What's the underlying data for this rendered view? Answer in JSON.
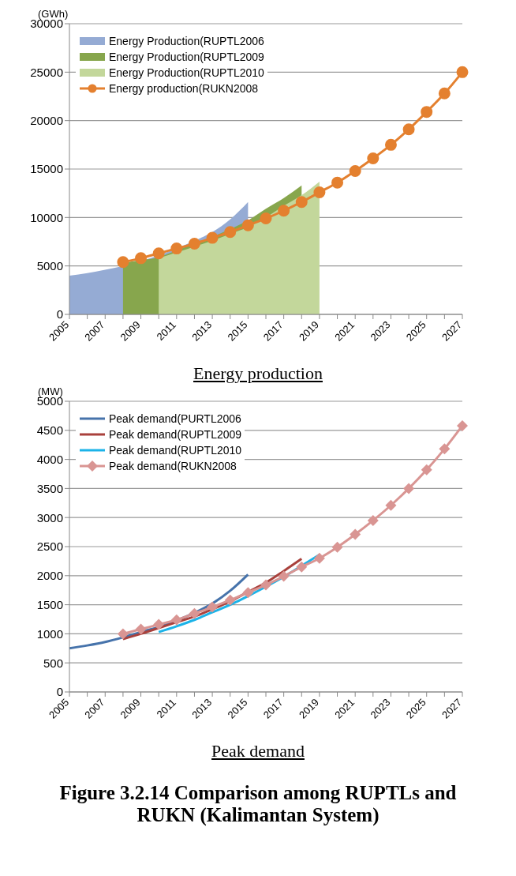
{
  "chart_data": [
    {
      "type": "area",
      "title": "Energy production",
      "ylabel": "(GWh)",
      "categories": [
        "2005",
        null,
        "2007",
        null,
        "2009",
        null,
        "2011",
        null,
        "2013",
        null,
        "2015",
        null,
        "2017",
        null,
        "2019",
        null,
        "2021",
        null,
        "2023",
        null,
        "2025",
        null,
        "2027"
      ],
      "ylim": [
        0,
        30000
      ],
      "yticks": [
        0,
        5000,
        10000,
        15000,
        20000,
        25000,
        30000
      ],
      "grid": "y",
      "legend": "top left",
      "series": [
        {
          "name": "Energy Production(RUPTL2006",
          "color": "#95abd4",
          "values": [
            4000,
            4250,
            4600,
            5000,
            5500,
            6100,
            6800,
            7600,
            8500,
            9800,
            11600,
            null,
            null,
            null,
            null,
            null,
            null,
            null,
            null,
            null,
            null,
            null,
            null
          ]
        },
        {
          "name": "Energy Production(RUPTL2009",
          "color": "#87a64d",
          "values": [
            null,
            null,
            null,
            5300,
            5600,
            5900,
            6600,
            7300,
            8000,
            8800,
            9700,
            10900,
            12000,
            13300,
            null,
            null,
            null,
            null,
            null,
            null,
            null,
            null,
            null
          ]
        },
        {
          "name": "Energy Production(RUPTL2010",
          "color": "#c3d79b",
          "values": [
            null,
            null,
            null,
            null,
            null,
            5800,
            6400,
            7000,
            7600,
            8300,
            9000,
            10000,
            11200,
            12300,
            13700,
            null,
            null,
            null,
            null,
            null,
            null,
            null,
            null
          ]
        },
        {
          "name": "Energy production(RUKN2008",
          "type": "line",
          "marker": "circle",
          "color": "#e4802f",
          "values": [
            null,
            null,
            null,
            5400,
            5800,
            6300,
            6800,
            7300,
            7900,
            8500,
            9200,
            9900,
            10700,
            11600,
            12600,
            13600,
            14800,
            16100,
            17500,
            19100,
            20900,
            22800,
            25000
          ]
        }
      ]
    },
    {
      "type": "line",
      "title": "Peak demand",
      "ylabel": "(MW)",
      "categories": [
        "2005",
        null,
        "2007",
        null,
        "2009",
        null,
        "2011",
        null,
        "2013",
        null,
        "2015",
        null,
        "2017",
        null,
        "2019",
        null,
        "2021",
        null,
        "2023",
        null,
        "2025",
        null,
        "2027"
      ],
      "ylim": [
        0,
        5000
      ],
      "yticks": [
        0,
        500,
        1000,
        1500,
        2000,
        2500,
        3000,
        3500,
        4000,
        4500,
        5000
      ],
      "grid": "y",
      "legend": "top left",
      "annotations": [
        "Figure 3.2.14 Comparison among RUPTLs and RUKN (Kalimantan System)"
      ],
      "series": [
        {
          "name": "Peak demand(PURTL2006",
          "color": "#4673ab",
          "values": [
            750,
            800,
            860,
            940,
            1030,
            1120,
            1230,
            1360,
            1520,
            1740,
            2020,
            null,
            null,
            null,
            null,
            null,
            null,
            null,
            null,
            null,
            null,
            null,
            null
          ]
        },
        {
          "name": "Peak demand(RUPTL2009",
          "color": "#a9413c",
          "values": [
            null,
            null,
            null,
            910,
            1000,
            1100,
            1200,
            1300,
            1420,
            1560,
            1720,
            1880,
            2080,
            2290,
            null,
            null,
            null,
            null,
            null,
            null,
            null,
            null,
            null
          ]
        },
        {
          "name": "Peak demand(RUPTL2010",
          "color": "#1cb3e8",
          "values": [
            null,
            null,
            null,
            null,
            null,
            1030,
            1130,
            1240,
            1370,
            1500,
            1650,
            1810,
            1980,
            2170,
            2360,
            null,
            null,
            null,
            null,
            null,
            null,
            null,
            null
          ]
        },
        {
          "name": "Peak demand(RUKN2008",
          "marker": "diamond",
          "color": "#d99593",
          "values": [
            null,
            null,
            null,
            1000,
            1080,
            1160,
            1240,
            1350,
            1460,
            1580,
            1710,
            1840,
            1990,
            2150,
            2300,
            2490,
            2710,
            2950,
            3210,
            3500,
            3820,
            4180,
            4580
          ]
        }
      ]
    }
  ]
}
